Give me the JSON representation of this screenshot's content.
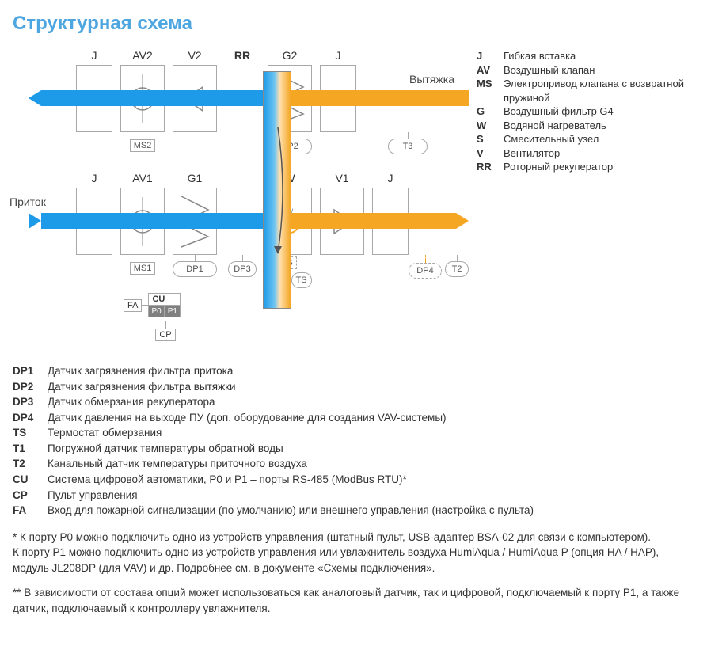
{
  "title": "Структурная схема",
  "colors": {
    "title": "#4da6e0",
    "blue": "#1e9be8",
    "orange": "#f5a623",
    "border": "#a8a8a8"
  },
  "io": {
    "exhaust": "Вытяжка",
    "supply": "Приток"
  },
  "top_labels": [
    "J",
    "AV2",
    "V2",
    "RR",
    "G2",
    "J"
  ],
  "bot_labels": [
    "J",
    "AV1",
    "G1",
    "",
    "W",
    "V1",
    "J"
  ],
  "sub_top": {
    "ms2": "MS2",
    "dp2": "DP2",
    "t3": "T3"
  },
  "sub_bot": {
    "ms1": "MS1",
    "dp1": "DP1",
    "dp3": "DP3",
    "s": "S",
    "t1": "T1",
    "ts": "TS",
    "dp4": "DP4",
    "t2": "T2",
    "w": "W"
  },
  "cu": {
    "fa": "FA",
    "cu": "CU",
    "p0": "P0",
    "p1": "P1",
    "cp": "CP"
  },
  "side_legend": [
    {
      "sym": "J",
      "txt": "Гибкая вставка"
    },
    {
      "sym": "AV",
      "txt": "Воздушный клапан"
    },
    {
      "sym": "MS",
      "txt": "Электропривод клапана с возвратной пружиной"
    },
    {
      "sym": "G",
      "txt": "Воздушный фильтр G4"
    },
    {
      "sym": "W",
      "txt": "Водяной нагреватель"
    },
    {
      "sym": "S",
      "txt": "Смесительный узел"
    },
    {
      "sym": "V",
      "txt": "Вентилятор"
    },
    {
      "sym": "RR",
      "txt": "Роторный рекуператор"
    }
  ],
  "defs": [
    {
      "sym": "DP1",
      "txt": "Датчик загрязнения фильтра притока"
    },
    {
      "sym": "DP2",
      "txt": "Датчик загрязнения фильтра вытяжки"
    },
    {
      "sym": "DP3",
      "txt": "Датчик обмерзания рекуператора"
    },
    {
      "sym": "DP4",
      "txt": "Датчик давления на выходе ПУ (доп. оборудование для создания VAV-системы)"
    },
    {
      "sym": "TS",
      "txt": "Термостат обмерзания"
    },
    {
      "sym": "T1",
      "txt": "Погружной датчик температуры обратной воды"
    },
    {
      "sym": "T2",
      "txt": "Канальный датчик температуры приточного воздуха"
    },
    {
      "sym": "CU",
      "txt": "Система цифровой автоматики, P0 и P1 – порты RS-485 (ModBus RTU)*"
    },
    {
      "sym": "CP",
      "txt": "Пульт управления"
    },
    {
      "sym": "FA",
      "txt": "Вход для пожарной сигнализации (по умолчанию) или внешнего управления (настройка с пульта)"
    }
  ],
  "notes": [
    "* К порту P0 можно подключить одно из устройств управления (штатный пульт, USB-адаптер BSA-02 для связи с компьютером).\n   К порту P1 можно подключить одно из устройств управления или увлажнитель воздуха HumiAqua /  HumiAqua P (опция HA / HAP), модуль JL208DP (для VAV) и др. Подробнее см. в документе «Схемы подключения».",
    "** В зависимости от состава опций может использоваться как аналоговый датчик, так и цифровой, подключаемый к порту P1, а также датчик, подключаемый к контроллеру увлажнителя."
  ]
}
